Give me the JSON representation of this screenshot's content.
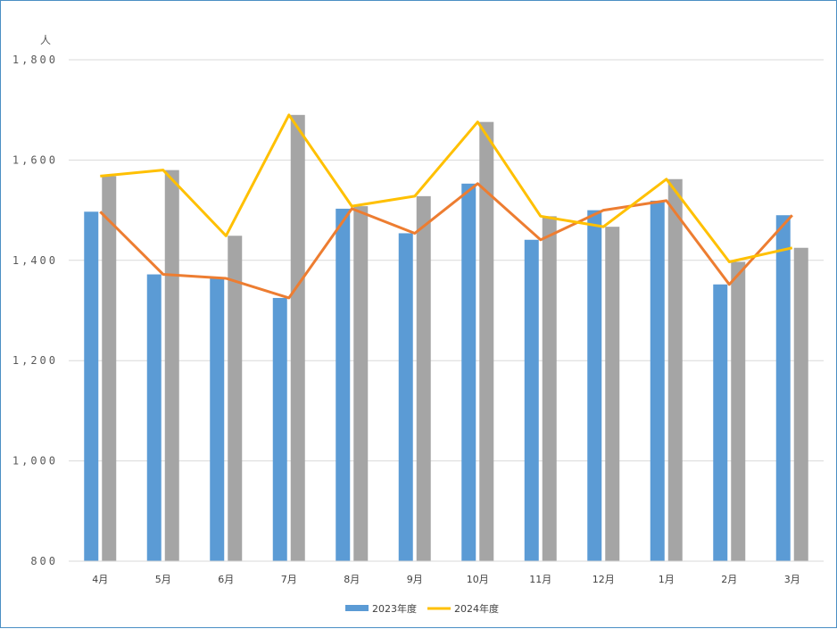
{
  "chart_data": {
    "type": "bar",
    "unit": "人",
    "categories": [
      "4月",
      "5月",
      "6月",
      "7月",
      "8月",
      "9月",
      "10月",
      "11月",
      "12月",
      "1月",
      "2月",
      "3月"
    ],
    "ylim": [
      800,
      1800
    ],
    "yticks": [
      800,
      1000,
      1200,
      1400,
      1600,
      1800
    ],
    "ytick_labels": [
      "800",
      "1,000",
      "1,200",
      "1,400",
      "1,600",
      "1,800"
    ],
    "grid": true,
    "legend_position": "bottom",
    "series": [
      {
        "name": "2023年度",
        "kind": "bar",
        "color": "#5b9bd5",
        "values": [
          1497,
          1372,
          1364,
          1325,
          1503,
          1454,
          1553,
          1441,
          1500,
          1519,
          1352,
          1490
        ]
      },
      {
        "kind": "bar",
        "color": "#a5a5a5",
        "values": [
          1568,
          1580,
          1449,
          1690,
          1508,
          1528,
          1676,
          1488,
          1467,
          1562,
          1397,
          1425
        ]
      },
      {
        "kind": "line",
        "color": "#ed7d31",
        "values": [
          1497,
          1372,
          1364,
          1325,
          1503,
          1454,
          1553,
          1441,
          1500,
          1519,
          1352,
          1490
        ]
      },
      {
        "name": "2024年度",
        "kind": "line",
        "color": "#ffc000",
        "values": [
          1568,
          1580,
          1449,
          1690,
          1508,
          1528,
          1676,
          1488,
          1467,
          1562,
          1397,
          1425
        ]
      }
    ]
  }
}
